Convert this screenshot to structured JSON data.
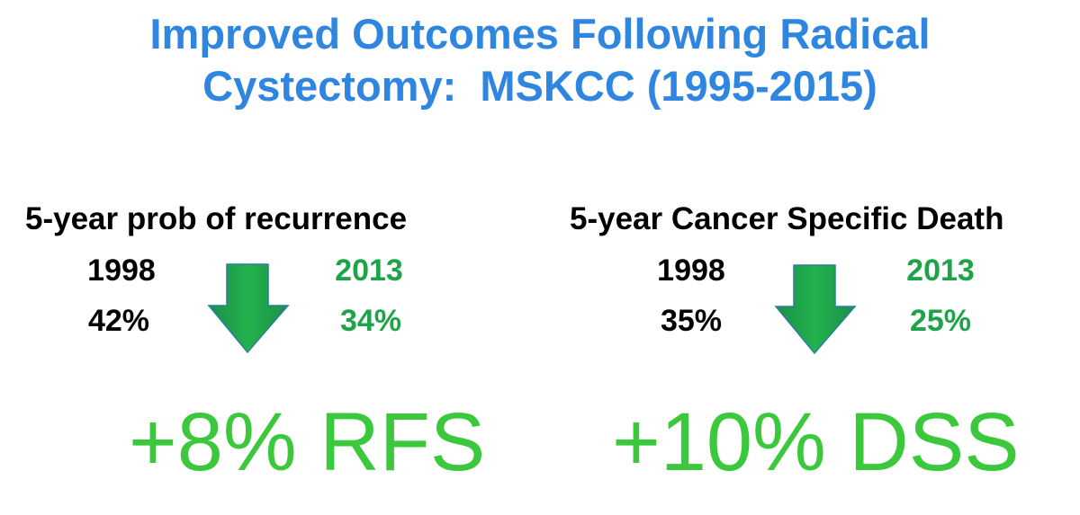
{
  "title": [
    "Improved Outcomes Following Radical",
    "Cystectomy:  MSKCC (1995-2015)"
  ],
  "panels": [
    {
      "heading": "5-year prob of recurrence",
      "from_year": "1998",
      "to_year": "2013",
      "from_value": "42%",
      "to_value": "34%",
      "summary": "+8% RFS"
    },
    {
      "heading": "5-year Cancer Specific Death",
      "from_year": "1998",
      "to_year": "2013",
      "from_value": "35%",
      "to_value": "25%",
      "summary": "+10% DSS"
    }
  ]
}
